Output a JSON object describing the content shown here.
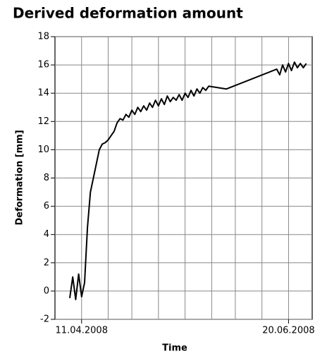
{
  "chart_data": {
    "type": "line",
    "title": "Derived deformation amount",
    "xlabel": "Time",
    "ylabel": "Deformation [mm]",
    "color": "#000000",
    "grid": true,
    "x": [
      "2008-04-07",
      "2008-04-08",
      "2008-04-09",
      "2008-04-10",
      "2008-04-11",
      "2008-04-12",
      "2008-04-13",
      "2008-04-14",
      "2008-04-15",
      "2008-04-16",
      "2008-04-17",
      "2008-04-18",
      "2008-04-19",
      "2008-04-20",
      "2008-04-21",
      "2008-04-22",
      "2008-04-23",
      "2008-04-24",
      "2008-04-25",
      "2008-04-26",
      "2008-04-27",
      "2008-04-28",
      "2008-04-29",
      "2008-04-30",
      "2008-05-01",
      "2008-05-02",
      "2008-05-03",
      "2008-05-04",
      "2008-05-05",
      "2008-05-06",
      "2008-05-07",
      "2008-05-08",
      "2008-05-09",
      "2008-05-10",
      "2008-05-11",
      "2008-05-12",
      "2008-05-13",
      "2008-05-14",
      "2008-05-15",
      "2008-05-16",
      "2008-05-17",
      "2008-05-18",
      "2008-05-19",
      "2008-05-20",
      "2008-05-21",
      "2008-05-22",
      "2008-05-23",
      "2008-05-24",
      "2008-05-30",
      "2008-06-16",
      "2008-06-17",
      "2008-06-18",
      "2008-06-19",
      "2008-06-20",
      "2008-06-21",
      "2008-06-22",
      "2008-06-23",
      "2008-06-24",
      "2008-06-25",
      "2008-06-26"
    ],
    "values": [
      -0.5,
      1.0,
      -0.6,
      1.2,
      -0.4,
      0.6,
      4.5,
      7.0,
      8.0,
      9.0,
      10.0,
      10.4,
      10.5,
      10.7,
      11.0,
      11.3,
      11.9,
      12.2,
      12.1,
      12.5,
      12.3,
      12.8,
      12.5,
      13.0,
      12.7,
      13.1,
      12.8,
      13.3,
      13.0,
      13.5,
      13.1,
      13.6,
      13.2,
      13.8,
      13.4,
      13.7,
      13.5,
      13.9,
      13.5,
      14.0,
      13.7,
      14.2,
      13.8,
      14.3,
      14.0,
      14.4,
      14.2,
      14.5,
      14.3,
      15.7,
      15.3,
      16.0,
      15.5,
      16.1,
      15.6,
      16.2,
      15.8,
      16.1,
      15.8,
      16.1
    ],
    "xlim": [
      "2008-04-02",
      "2008-06-28"
    ],
    "xticks": [
      {
        "value": "2008-04-11",
        "label": "11.04.2008"
      },
      {
        "value": "2008-06-20",
        "label": "20.06.2008"
      }
    ],
    "xgrid": [
      "2008-04-11",
      "2008-04-20",
      "2008-04-28",
      "2008-05-07",
      "2008-05-16",
      "2008-05-25",
      "2008-06-02",
      "2008-06-11",
      "2008-06-20"
    ],
    "ylim": [
      -2,
      18
    ],
    "yticks": [
      -2,
      0,
      2,
      4,
      6,
      8,
      10,
      12,
      14,
      16,
      18
    ]
  }
}
